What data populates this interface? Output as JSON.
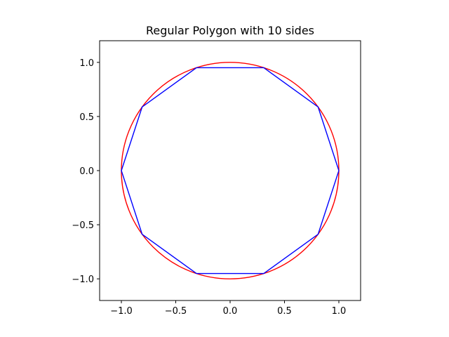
{
  "chart_data": {
    "type": "line",
    "title": "Regular Polygon with 10 sides",
    "xlabel": "",
    "ylabel": "",
    "xlim": [
      -1.2,
      1.2
    ],
    "ylim": [
      -1.2,
      1.2
    ],
    "grid": false,
    "aspect": "equal",
    "x_ticks": [
      -1.0,
      -0.5,
      0.0,
      0.5,
      1.0
    ],
    "x_tick_labels": [
      "−1.0",
      "−0.5",
      "0.0",
      "0.5",
      "1.0"
    ],
    "y_ticks": [
      -1.0,
      -0.5,
      0.0,
      0.5,
      1.0
    ],
    "y_tick_labels": [
      "−1.0",
      "−0.5",
      "0.0",
      "0.5",
      "1.0"
    ],
    "series": [
      {
        "kind": "circle",
        "color": "#ff0000",
        "center": [
          0.0,
          0.0
        ],
        "radius": 1.0
      },
      {
        "kind": "polygon",
        "color": "#0000ff",
        "sides": 10,
        "x": [
          1.0,
          0.809,
          0.309,
          -0.309,
          -0.809,
          -1.0,
          -0.809,
          -0.309,
          0.309,
          0.809,
          1.0
        ],
        "y": [
          0.0,
          0.588,
          0.951,
          0.951,
          0.588,
          0.0,
          -0.588,
          -0.951,
          -0.951,
          -0.588,
          0.0
        ]
      }
    ]
  }
}
